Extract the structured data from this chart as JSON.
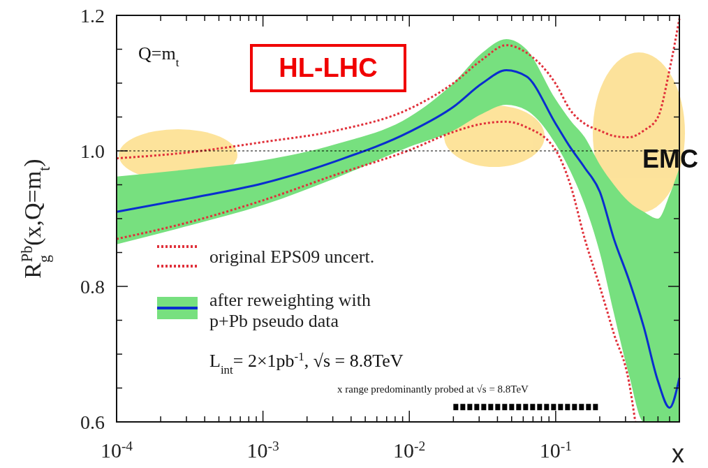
{
  "chart_data": {
    "type": "line",
    "ylabel": "R$_{g}$$^{Pb}$(x,Q=m$_{t}$)",
    "xlabel": "x",
    "log": "x",
    "xlim": [
      0.0001,
      0.7
    ],
    "ylim": [
      0.6,
      1.2
    ],
    "xticks": [
      {
        "value": 0.0001,
        "label": "10$^{-4}$"
      },
      {
        "value": 0.0002,
        "label": null
      },
      {
        "value": 0.0003,
        "label": null
      },
      {
        "value": 0.0004,
        "label": null
      },
      {
        "value": 0.0005,
        "label": null
      },
      {
        "value": 0.0006,
        "label": null
      },
      {
        "value": 0.0007,
        "label": null
      },
      {
        "value": 0.0008,
        "label": null
      },
      {
        "value": 0.0009,
        "label": null
      },
      {
        "value": 0.001,
        "label": "10$^{-3}$"
      },
      {
        "value": 0.002,
        "label": null
      },
      {
        "value": 0.003,
        "label": null
      },
      {
        "value": 0.004,
        "label": null
      },
      {
        "value": 0.005,
        "label": null
      },
      {
        "value": 0.006,
        "label": null
      },
      {
        "value": 0.007,
        "label": null
      },
      {
        "value": 0.008,
        "label": null
      },
      {
        "value": 0.009,
        "label": null
      },
      {
        "value": 0.01,
        "label": "10$^{-2}$"
      },
      {
        "value": 0.02,
        "label": null
      },
      {
        "value": 0.03,
        "label": null
      },
      {
        "value": 0.04,
        "label": null
      },
      {
        "value": 0.05,
        "label": null
      },
      {
        "value": 0.06,
        "label": null
      },
      {
        "value": 0.07,
        "label": null
      },
      {
        "value": 0.08,
        "label": null
      },
      {
        "value": 0.09,
        "label": null
      },
      {
        "value": 0.1,
        "label": "10$^{-1}$"
      },
      {
        "value": 0.2,
        "label": null
      },
      {
        "value": 0.3,
        "label": null
      },
      {
        "value": 0.4,
        "label": null
      },
      {
        "value": 0.5,
        "label": null
      },
      {
        "value": 0.6,
        "label": null
      }
    ],
    "yticks": [
      {
        "value": 0.6,
        "label": "0.6"
      },
      {
        "value": 0.65,
        "label": null
      },
      {
        "value": 0.7,
        "label": null
      },
      {
        "value": 0.75,
        "label": null
      },
      {
        "value": 0.8,
        "label": "0.8"
      },
      {
        "value": 0.85,
        "label": null
      },
      {
        "value": 0.9,
        "label": null
      },
      {
        "value": 0.95,
        "label": null
      },
      {
        "value": 1,
        "label": "1.0"
      },
      {
        "value": 1.05,
        "label": null
      },
      {
        "value": 1.1,
        "label": null
      },
      {
        "value": 1.15,
        "label": null
      },
      {
        "value": 1.2,
        "label": "1.2"
      }
    ],
    "legend": "bottom left",
    "grid": false,
    "series": [
      {
        "name": "original EPS09 uncert.",
        "color": "#e0303a",
        "line_style": "dotted",
        "x": [
          0.0001,
          0.000316,
          0.001,
          0.00316,
          0.01,
          0.02,
          0.0316,
          0.046,
          0.063,
          0.1,
          0.126,
          0.158,
          0.2,
          0.25,
          0.316,
          0.4,
          0.5,
          0.6,
          0.7
        ],
        "values": [
          0.989,
          0.998,
          1.013,
          1.03,
          1.062,
          1.1,
          1.135,
          1.156,
          1.145,
          1.099,
          1.06,
          1.04,
          1.03,
          1.022,
          1.02,
          1.03,
          1.05,
          1.12,
          1.195
        ]
      },
      {
        "color": "#e0303a",
        "line_style": "dotted",
        "x": [
          0.0001,
          0.000316,
          0.001,
          0.00316,
          0.01,
          0.02,
          0.0316,
          0.046,
          0.063,
          0.1,
          0.126,
          0.158,
          0.2,
          0.25,
          0.316,
          0.35
        ],
        "values": [
          0.87,
          0.895,
          0.927,
          0.965,
          1.001,
          1.028,
          1.04,
          1.043,
          1.035,
          1.001,
          0.95,
          0.87,
          0.8,
          0.73,
          0.66,
          0.6
        ]
      },
      {
        "name": "after reweighting with p+Pb pseudo data",
        "color": "#0a2ecf",
        "line_style": "solid",
        "x": [
          0.0001,
          0.000316,
          0.001,
          0.00316,
          0.01,
          0.02,
          0.0316,
          0.046,
          0.063,
          0.1,
          0.126,
          0.158,
          0.2,
          0.25,
          0.316,
          0.4,
          0.5,
          0.6,
          0.7
        ],
        "values": [
          0.91,
          0.93,
          0.952,
          0.985,
          1.028,
          1.065,
          1.1,
          1.119,
          1.11,
          1.04,
          1.005,
          0.975,
          0.94,
          0.87,
          0.81,
          0.74,
          0.66,
          0.621,
          0.665
        ],
        "lower": [
          0.862,
          0.89,
          0.92,
          0.96,
          1.006,
          1.03,
          1.055,
          1.068,
          1.06,
          1.01,
          0.97,
          0.92,
          0.85,
          0.76,
          0.67,
          0.6,
          0.6,
          0.6,
          0.6
        ],
        "upper": [
          0.962,
          0.973,
          0.986,
          1.01,
          1.05,
          1.1,
          1.145,
          1.165,
          1.15,
          1.076,
          1.045,
          1.02,
          0.98,
          0.95,
          0.925,
          0.91,
          0.9,
          0.935,
          0.975
        ]
      },
      {
        "color": "#000000",
        "line_style": "dashed",
        "x": [
          0.02,
          0.2
        ],
        "values": [
          0.622,
          0.622
        ]
      }
    ],
    "ref_lines": [
      {
        "axis": "y",
        "value": 1,
        "color": "#000000",
        "line_style": "dotted"
      }
    ],
    "annotations": [
      "Q=m$_{t}$",
      "HL-LHC",
      "EMC",
      "L$_{int}$= 2×1pb$^{-1}$, √s = 8.8TeV",
      "x range predominantly probed at √s = 8.8TeV"
    ]
  }
}
